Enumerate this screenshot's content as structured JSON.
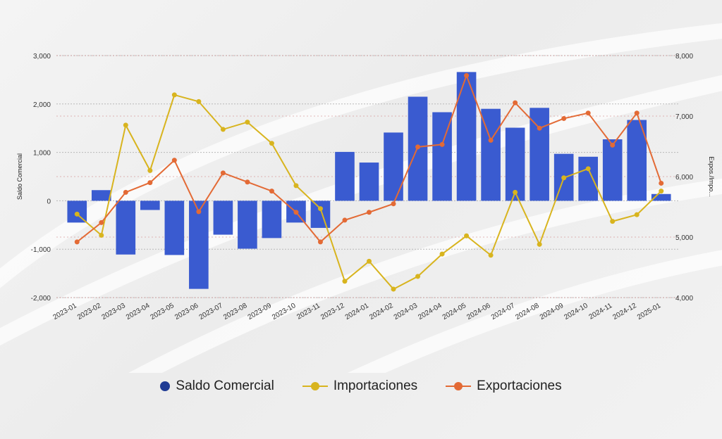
{
  "chart_data": {
    "type": "bar+line",
    "categories": [
      "2023-01",
      "2023-02",
      "2023-03",
      "2023-04",
      "2023-05",
      "2023-06",
      "2023-07",
      "2023-08",
      "2023-09",
      "2023-10",
      "2023-11",
      "2023-12",
      "2024-01",
      "2024-02",
      "2024-03",
      "2024-04",
      "2024-05",
      "2024-06",
      "2024-07",
      "2024-08",
      "2024-09",
      "2024-10",
      "2024-11",
      "2024-12",
      "2025-01"
    ],
    "series": [
      {
        "name": "Saldo Comercial",
        "type": "bar",
        "axis": "left",
        "color": "#3a5bd0",
        "values": [
          -450,
          220,
          -1110,
          -190,
          -1120,
          -1820,
          -700,
          -990,
          -770,
          -450,
          -560,
          1010,
          790,
          1410,
          2150,
          1830,
          2660,
          1900,
          1510,
          1920,
          970,
          910,
          1270,
          1670,
          140
        ]
      },
      {
        "name": "Importaciones",
        "type": "line",
        "axis": "right",
        "color": "#d8b41e",
        "values": [
          5380,
          5030,
          6850,
          6100,
          7350,
          7240,
          6780,
          6900,
          6550,
          5850,
          5470,
          4270,
          4600,
          4140,
          4350,
          4720,
          5020,
          4700,
          5740,
          4880,
          5980,
          6130,
          5260,
          5370,
          5760
        ]
      },
      {
        "name": "Exportaciones",
        "type": "line",
        "axis": "right",
        "color": "#e36a35",
        "values": [
          4920,
          5240,
          5740,
          5900,
          6270,
          5420,
          6060,
          5910,
          5760,
          5410,
          4920,
          5280,
          5410,
          5550,
          6490,
          6530,
          7670,
          6600,
          7220,
          6800,
          6960,
          7050,
          6520,
          7050,
          5890
        ]
      }
    ],
    "y_left": {
      "label": "Saldo Comercial",
      "ylim": [
        -2000,
        3000
      ],
      "ticks": [
        -2000,
        -1000,
        0,
        1000,
        2000,
        3000
      ],
      "tick_labels": [
        "-2,000",
        "-1,000",
        "0",
        "1,000",
        "2,000",
        "3,000"
      ]
    },
    "y_right": {
      "label": "Expos./Impo...",
      "ylim": [
        4000,
        8000
      ],
      "ticks": [
        4000,
        5000,
        6000,
        7000,
        8000
      ],
      "tick_labels": [
        "4,000",
        "5,000",
        "6,000",
        "7,000",
        "8,000"
      ]
    },
    "grid": true,
    "legend_position": "bottom"
  },
  "legend": [
    {
      "label": "Saldo Comercial",
      "marker": "dot",
      "color": "#1f3b94"
    },
    {
      "label": "Importaciones",
      "marker": "line",
      "color": "#d8b41e"
    },
    {
      "label": "Exportaciones",
      "marker": "line",
      "color": "#e36a35"
    }
  ]
}
